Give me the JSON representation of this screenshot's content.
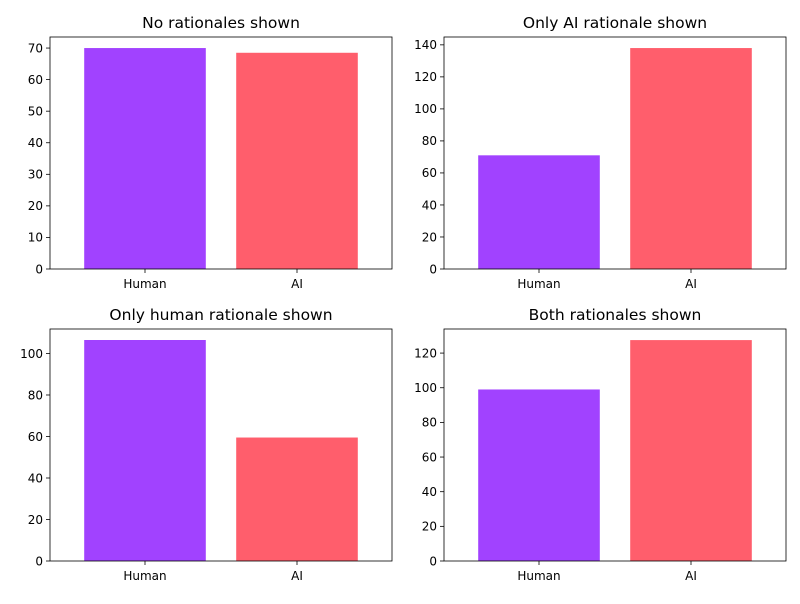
{
  "colors": {
    "human": "#A142FF",
    "ai": "#FF5E6C"
  },
  "chart_data": [
    {
      "type": "bar",
      "title": "No rationales shown",
      "categories": [
        "Human",
        "AI"
      ],
      "values": [
        70,
        68.5
      ],
      "ylim": [
        0,
        73.5
      ],
      "yticks": [
        0,
        10,
        20,
        30,
        40,
        50,
        60,
        70
      ],
      "grid": false
    },
    {
      "type": "bar",
      "title": "Only AI rationale shown",
      "categories": [
        "Human",
        "AI"
      ],
      "values": [
        71,
        138
      ],
      "ylim": [
        0,
        144.9
      ],
      "yticks": [
        0,
        20,
        40,
        60,
        80,
        100,
        120,
        140
      ],
      "grid": false
    },
    {
      "type": "bar",
      "title": "Only human rationale shown",
      "categories": [
        "Human",
        "AI"
      ],
      "values": [
        106.5,
        59.5
      ],
      "ylim": [
        0,
        111.8
      ],
      "yticks": [
        0,
        20,
        40,
        60,
        80,
        100
      ],
      "grid": false
    },
    {
      "type": "bar",
      "title": "Both rationales shown",
      "categories": [
        "Human",
        "AI"
      ],
      "values": [
        99,
        127.5
      ],
      "ylim": [
        0,
        133.9
      ],
      "yticks": [
        0,
        20,
        40,
        60,
        80,
        100,
        120
      ],
      "grid": false
    }
  ]
}
